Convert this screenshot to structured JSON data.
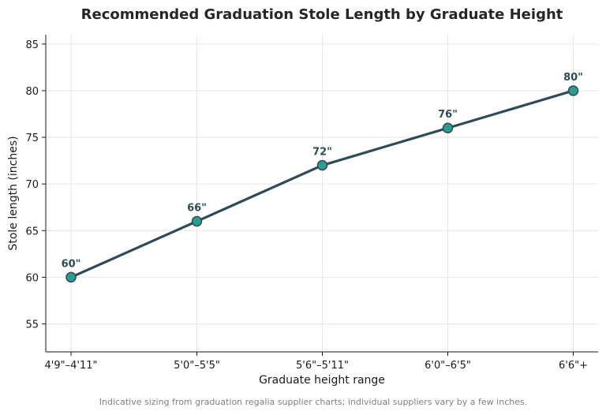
{
  "chart_data": {
    "type": "line",
    "title": "Recommended Graduation Stole Length by Graduate Height",
    "xlabel": "Graduate height range",
    "ylabel": "Stole length (inches)",
    "categories": [
      "4'9\"–4'11\"",
      "5'0\"–5'5\"",
      "5'6\"–5'11\"",
      "6'0\"–6'5\"",
      "6'6\"+"
    ],
    "series": [
      {
        "values": [
          60,
          66,
          72,
          76,
          80
        ]
      }
    ],
    "data_labels": [
      "60\"",
      "66\"",
      "72\"",
      "76\"",
      "80\""
    ],
    "ylim": [
      52,
      86
    ],
    "yticks": [
      55,
      60,
      65,
      70,
      75,
      80,
      85
    ],
    "grid": true,
    "line_color": "#2f4b5a",
    "marker_color": "#2a9d8f",
    "footnote": "Indicative sizing from graduation regalia supplier charts; individual suppliers vary by a few inches."
  }
}
